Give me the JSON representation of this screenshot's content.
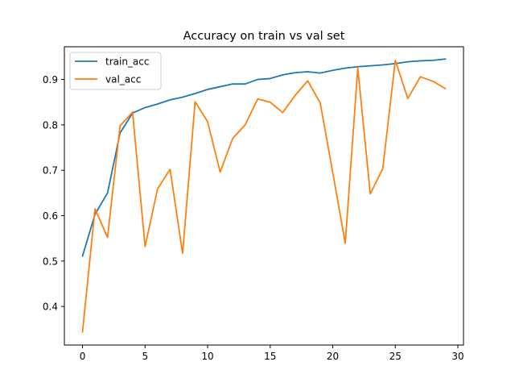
{
  "chart_data": {
    "type": "line",
    "title": "Accuracy on train vs val set",
    "xlabel": "",
    "ylabel": "",
    "xlim": [
      -1.45,
      30.45
    ],
    "ylim": [
      0.315,
      0.972
    ],
    "xticks": [
      0,
      5,
      10,
      15,
      20,
      25,
      30
    ],
    "yticks": [
      0.4,
      0.5,
      0.6,
      0.7,
      0.8,
      0.9
    ],
    "grid": false,
    "legend_position": "top-left",
    "x": [
      0,
      1,
      2,
      3,
      4,
      5,
      6,
      7,
      8,
      9,
      10,
      11,
      12,
      13,
      14,
      15,
      16,
      17,
      18,
      19,
      20,
      21,
      22,
      23,
      24,
      25,
      26,
      27,
      28,
      29
    ],
    "series": [
      {
        "name": "train_acc",
        "color": "#1f77b4",
        "values": [
          0.511,
          0.603,
          0.65,
          0.782,
          0.826,
          0.838,
          0.846,
          0.855,
          0.861,
          0.869,
          0.878,
          0.884,
          0.89,
          0.89,
          0.9,
          0.902,
          0.91,
          0.915,
          0.917,
          0.914,
          0.92,
          0.925,
          0.928,
          0.93,
          0.932,
          0.935,
          0.939,
          0.941,
          0.942,
          0.945
        ]
      },
      {
        "name": "val_acc",
        "color": "#ff7f0e",
        "values": [
          0.344,
          0.615,
          0.552,
          0.798,
          0.828,
          0.532,
          0.659,
          0.702,
          0.517,
          0.851,
          0.807,
          0.696,
          0.77,
          0.8,
          0.857,
          0.85,
          0.827,
          0.865,
          0.897,
          0.848,
          0.695,
          0.539,
          0.925,
          0.648,
          0.704,
          0.942,
          0.858,
          0.906,
          0.896,
          0.88
        ]
      }
    ]
  }
}
